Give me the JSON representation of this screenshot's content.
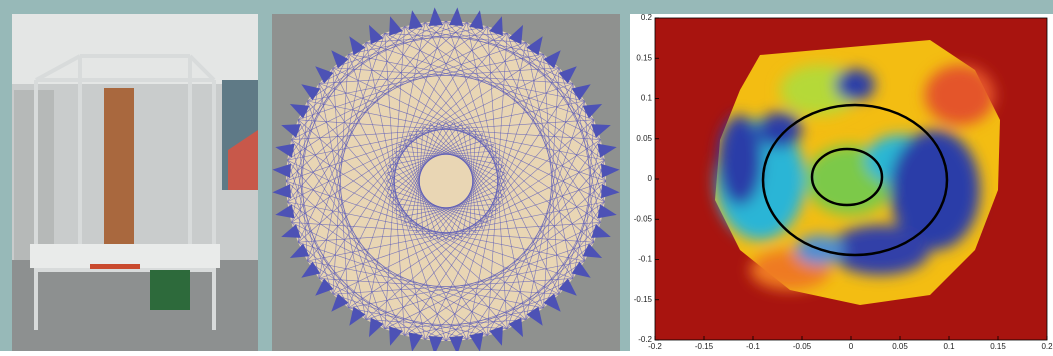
{
  "chart_data": {
    "type": "heatmap",
    "xlim": [
      -0.2,
      0.2
    ],
    "ylim": [
      -0.2,
      0.2
    ],
    "xticks": [
      -0.2,
      -0.15,
      -0.1,
      -0.05,
      0,
      0.05,
      0.1,
      0.15,
      0.2
    ],
    "yticks": [
      -0.2,
      -0.15,
      -0.1,
      -0.05,
      0,
      0.05,
      0.1,
      0.15,
      0.2
    ]
  }
}
